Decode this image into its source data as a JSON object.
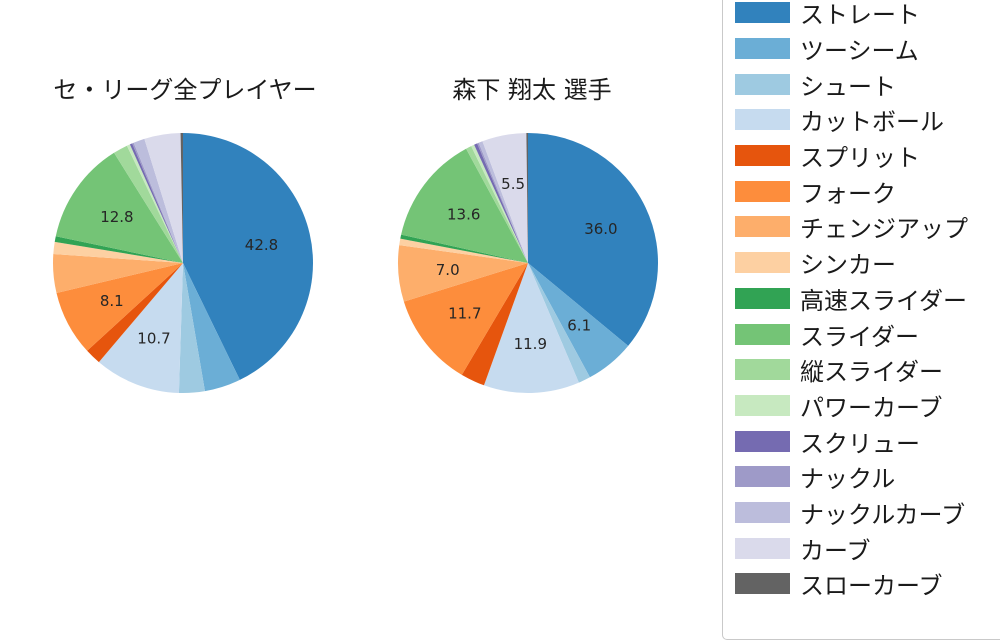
{
  "chart_data": [
    {
      "type": "pie",
      "title": "セ・リーグ全プレイヤー",
      "categories": [
        "ストレート",
        "ツーシーム",
        "シュート",
        "カットボール",
        "スプリット",
        "フォーク",
        "チェンジアップ",
        "シンカー",
        "高速スライダー",
        "スライダー",
        "縦スライダー",
        "パワーカーブ",
        "スクリュー",
        "ナックル",
        "ナックルカーブ",
        "カーブ",
        "スローカーブ"
      ],
      "values": [
        42.8,
        4.5,
        3.2,
        10.7,
        2.0,
        8.1,
        4.8,
        1.5,
        0.7,
        12.8,
        1.8,
        0.4,
        0.3,
        0.2,
        1.4,
        4.5,
        0.3
      ],
      "startangle_deg": 90,
      "direction": "clockwise",
      "pct_label_min": 5.0,
      "pct_label_distance": 0.62,
      "visible_pct_labels": [
        "42.8",
        "10.7",
        "8.1",
        "12.8"
      ]
    },
    {
      "type": "pie",
      "title": "森下 翔太 選手",
      "categories": [
        "ストレート",
        "ツーシーム",
        "シュート",
        "カットボール",
        "スプリット",
        "フォーク",
        "チェンジアップ",
        "シンカー",
        "高速スライダー",
        "スライダー",
        "縦スライダー",
        "パワーカーブ",
        "スクリュー",
        "ナックル",
        "ナックルカーブ",
        "カーブ",
        "スローカーブ"
      ],
      "values": [
        36.0,
        6.1,
        1.5,
        11.9,
        3.0,
        11.7,
        7.0,
        0.8,
        0.5,
        13.6,
        0.7,
        0.4,
        0.4,
        0.2,
        0.5,
        5.5,
        0.2
      ],
      "startangle_deg": 90,
      "direction": "clockwise",
      "pct_label_min": 5.0,
      "pct_label_distance": 0.62,
      "visible_pct_labels": [
        "36.0",
        "6.1",
        "11.9",
        "11.7",
        "7.0",
        "13.6",
        "5.5"
      ]
    }
  ],
  "legend": {
    "position": "right",
    "items": [
      {
        "label": "ストレート",
        "color": "#3182bd"
      },
      {
        "label": "ツーシーム",
        "color": "#6baed6"
      },
      {
        "label": "シュート",
        "color": "#9ecae1"
      },
      {
        "label": "カットボール",
        "color": "#c6dbef"
      },
      {
        "label": "スプリット",
        "color": "#e6550d"
      },
      {
        "label": "フォーク",
        "color": "#fd8d3c"
      },
      {
        "label": "チェンジアップ",
        "color": "#fdae6b"
      },
      {
        "label": "シンカー",
        "color": "#fdd0a2"
      },
      {
        "label": "高速スライダー",
        "color": "#31a354"
      },
      {
        "label": "スライダー",
        "color": "#74c476"
      },
      {
        "label": "縦スライダー",
        "color": "#a1d99b"
      },
      {
        "label": "パワーカーブ",
        "color": "#c7e9c0"
      },
      {
        "label": "スクリュー",
        "color": "#756bb1"
      },
      {
        "label": "ナックル",
        "color": "#9e9ac8"
      },
      {
        "label": "ナックルカーブ",
        "color": "#bcbddc"
      },
      {
        "label": "カーブ",
        "color": "#dadaeb"
      },
      {
        "label": "スローカーブ",
        "color": "#636363"
      }
    ]
  },
  "style": {
    "background": "#ffffff",
    "text_color": "#1a1a1a",
    "legend_border_color": "#c9c9c9"
  }
}
